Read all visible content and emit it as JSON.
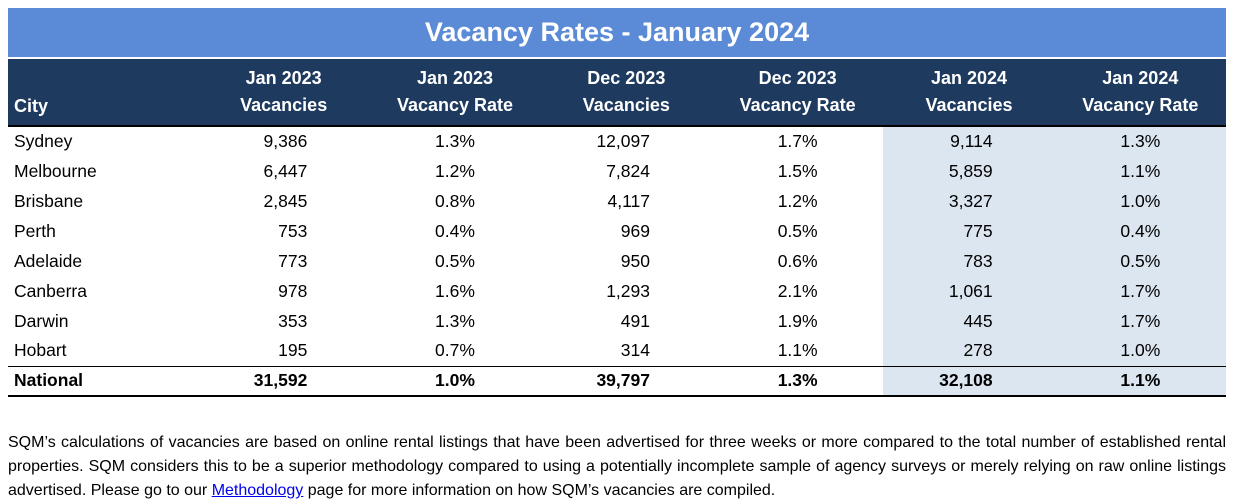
{
  "title": "Vacancy Rates - January 2024",
  "table": {
    "columns": [
      {
        "line1": "City",
        "line2": ""
      },
      {
        "line1": "Jan 2023",
        "line2": "Vacancies"
      },
      {
        "line1": "Jan 2023",
        "line2": "Vacancy Rate"
      },
      {
        "line1": "Dec 2023",
        "line2": "Vacancies"
      },
      {
        "line1": "Dec 2023",
        "line2": "Vacancy Rate"
      },
      {
        "line1": "Jan 2024",
        "line2": "Vacancies"
      },
      {
        "line1": "Jan 2024",
        "line2": "Vacancy Rate"
      }
    ],
    "rows": [
      {
        "city": "Sydney",
        "values": [
          "9,386",
          "1.3%",
          "12,097",
          "1.7%",
          "9,114",
          "1.3%"
        ]
      },
      {
        "city": "Melbourne",
        "values": [
          "6,447",
          "1.2%",
          "7,824",
          "1.5%",
          "5,859",
          "1.1%"
        ]
      },
      {
        "city": "Brisbane",
        "values": [
          "2,845",
          "0.8%",
          "4,117",
          "1.2%",
          "3,327",
          "1.0%"
        ]
      },
      {
        "city": "Perth",
        "values": [
          "753",
          "0.4%",
          "969",
          "0.5%",
          "775",
          "0.4%"
        ]
      },
      {
        "city": "Adelaide",
        "values": [
          "773",
          "0.5%",
          "950",
          "0.6%",
          "783",
          "0.5%"
        ]
      },
      {
        "city": "Canberra",
        "values": [
          "978",
          "1.6%",
          "1,293",
          "2.1%",
          "1,061",
          "1.7%"
        ]
      },
      {
        "city": "Darwin",
        "values": [
          "353",
          "1.3%",
          "491",
          "1.9%",
          "445",
          "1.7%"
        ]
      },
      {
        "city": "Hobart",
        "values": [
          "195",
          "0.7%",
          "314",
          "1.1%",
          "278",
          "1.0%"
        ]
      }
    ],
    "total_row": {
      "city": "National",
      "values": [
        "31,592",
        "1.0%",
        "39,797",
        "1.3%",
        "32,108",
        "1.1%"
      ]
    }
  },
  "footer": {
    "text_before_link": "SQM’s calculations of vacancies are based on online rental listings that have been advertised for three weeks or more compared to the total number of established rental properties. SQM considers this to be a superior methodology compared to using a potentially incomplete sample of agency surveys or merely relying on raw online listings advertised. Please go to our ",
    "link_text": "Methodology",
    "text_after_link": " page for more information on how SQM’s vacancies are compiled."
  },
  "colors": {
    "title_bg": "#5b8bd6",
    "header_bg": "#1e3a5f",
    "highlight_bg": "#dce6f1",
    "link_color": "#0000ee"
  }
}
